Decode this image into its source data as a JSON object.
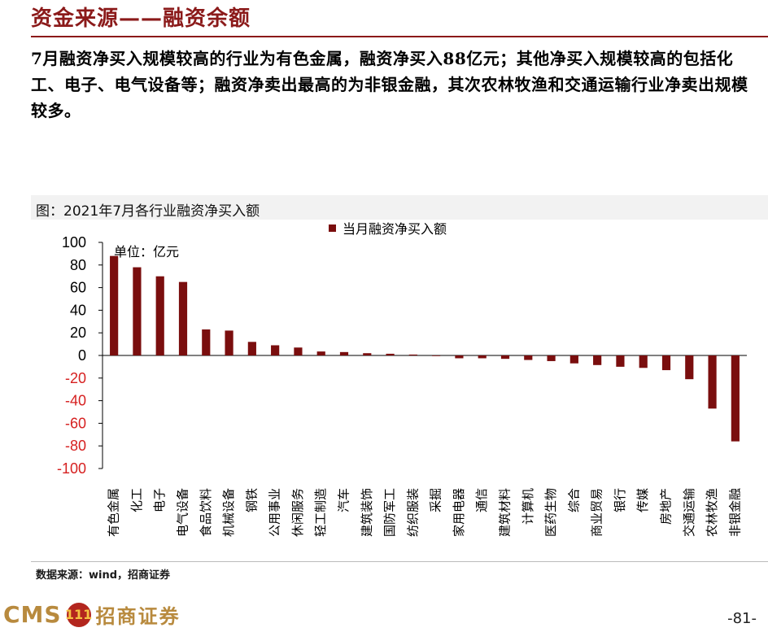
{
  "page": {
    "title": "资金来源——融资余额",
    "summary": "7月融资净买入规模较高的行业为有色金属，融资净买入88亿元；其他净买入规模较高的包括化工、电子、电气设备等；融资净卖出最高的为非银金融，其次农林牧渔和交通运输行业净卖出规模较多。",
    "figure_caption": "图：2021年7月各行业融资净买入额",
    "source": "数据来源：wind，招商证券",
    "page_number": "-81-"
  },
  "footer": {
    "logo_text": "CMS",
    "logo_badge": "111",
    "logo_cn": "招商证券"
  },
  "chart_data": {
    "type": "bar",
    "title": "图：2021年7月各行业融资净买入额",
    "unit_label": "单位：亿元",
    "legend": [
      {
        "name": "当月融资净买入额",
        "color": "#7a0e0e"
      }
    ],
    "ylim": [
      -100,
      100
    ],
    "yticks": [
      100,
      80,
      60,
      40,
      20,
      0,
      -20,
      -40,
      -60,
      -80,
      -100
    ],
    "negative_tick_color": "#d62020",
    "bar_color": "#7a0e0e",
    "categories": [
      "有色金属",
      "化工",
      "电子",
      "电气设备",
      "食品饮料",
      "机械设备",
      "钢铁",
      "公用事业",
      "休闲服务",
      "轻工制造",
      "汽车",
      "建筑装饰",
      "国防军工",
      "纺织服装",
      "采掘",
      "家用电器",
      "通信",
      "建筑材料",
      "计算机",
      "医药生物",
      "综合",
      "商业贸易",
      "银行",
      "传媒",
      "房地产",
      "交通运输",
      "农林牧渔",
      "非银金融"
    ],
    "series": [
      {
        "name": "当月融资净买入额",
        "values": [
          88,
          78,
          70,
          65,
          23,
          22,
          12,
          9,
          7,
          3.5,
          3,
          2,
          1.5,
          0.8,
          -0.5,
          -2.5,
          -2.5,
          -3,
          -4,
          -5,
          -7,
          -8.5,
          -10,
          -11,
          -13,
          -21,
          -47,
          -76
        ]
      }
    ]
  }
}
